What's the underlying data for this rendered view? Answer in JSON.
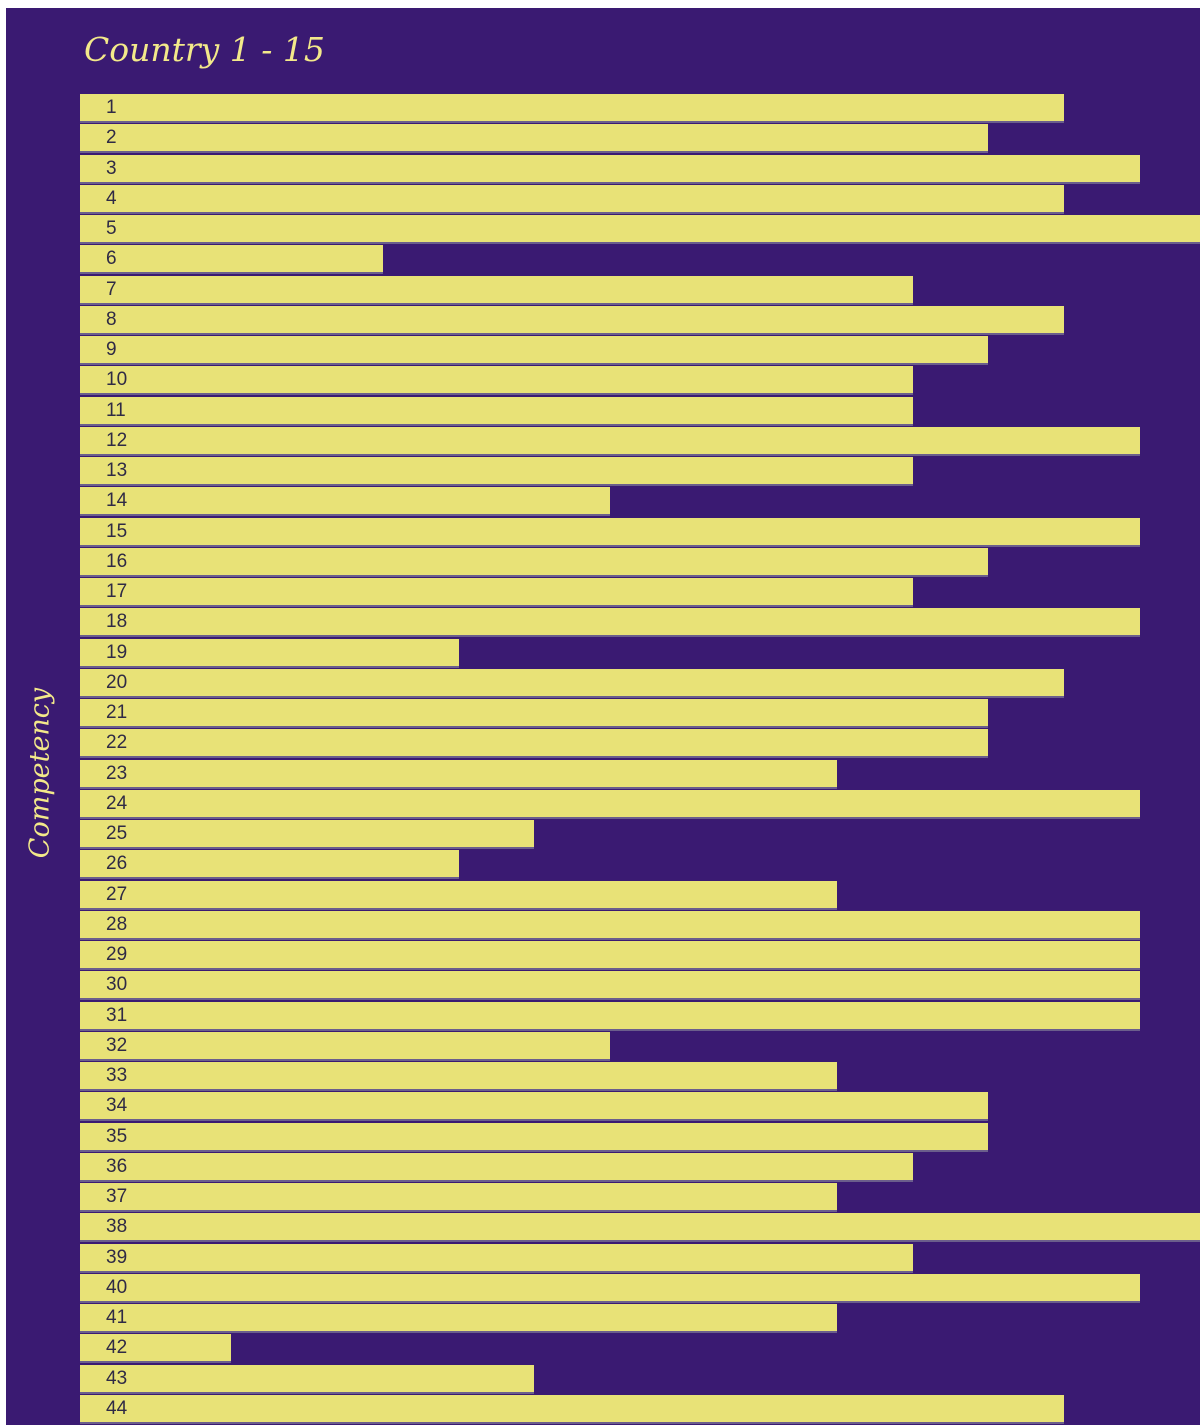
{
  "chart_data": {
    "type": "bar",
    "orientation": "horizontal",
    "title": "Country 1 - 15",
    "ylabel": "Competency",
    "xlabel": "",
    "categories": [
      "1",
      "2",
      "3",
      "4",
      "5",
      "6",
      "7",
      "8",
      "9",
      "10",
      "11",
      "12",
      "13",
      "14",
      "15",
      "16",
      "17",
      "18",
      "19",
      "20",
      "21",
      "22",
      "23",
      "24",
      "25",
      "26",
      "27",
      "28",
      "29",
      "30",
      "31",
      "32",
      "33",
      "34",
      "35",
      "36",
      "37",
      "38",
      "39",
      "40",
      "41",
      "42",
      "43",
      "44"
    ],
    "values": [
      13,
      12,
      14,
      13,
      15,
      4,
      11,
      13,
      12,
      11,
      11,
      14,
      11,
      7,
      14,
      12,
      11,
      14,
      5,
      13,
      12,
      12,
      10,
      14,
      6,
      5,
      10,
      14,
      14,
      14,
      14,
      7,
      10,
      12,
      12,
      11,
      10,
      15,
      11,
      14,
      10,
      2,
      6,
      13
    ],
    "grid": false,
    "legend": "none",
    "colors": {
      "background": "#3a1a72",
      "bar": "#e8e277",
      "text": "#f3e98a",
      "label": "#2f2a45"
    }
  }
}
